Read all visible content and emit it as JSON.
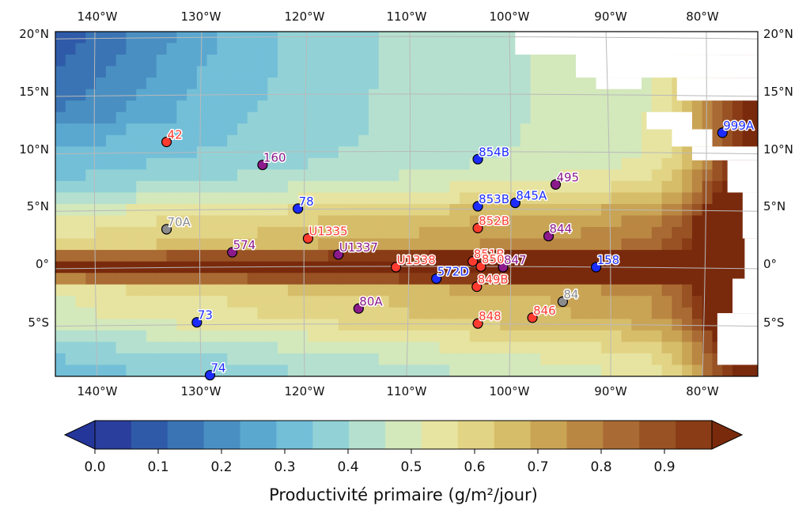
{
  "map": {
    "lon_ticks": [
      "140°W",
      "130°W",
      "120°W",
      "110°W",
      "100°W",
      "90°W",
      "80°W"
    ],
    "lat_ticks": [
      "20°N",
      "15°N",
      "10°N",
      "5°N",
      "0°",
      "5°S"
    ],
    "extent": {
      "lon": [
        -144.5,
        -75
      ],
      "lat": [
        -9.5,
        20.5
      ]
    },
    "land_color": "#ffffff",
    "grid": true
  },
  "colorbar": {
    "title": "Productivité primaire (g/m²/jour)",
    "ticks": [
      "0.0",
      "0.1",
      "0.2",
      "0.3",
      "0.4",
      "0.5",
      "0.6",
      "0.7",
      "0.8",
      "0.9"
    ],
    "colors": [
      "#2a3e9e",
      "#2f5aa8",
      "#3a74b4",
      "#4a8fc2",
      "#5aa8cf",
      "#73bfd8",
      "#92d2d6",
      "#b5e0cf",
      "#d3e8bb",
      "#e6e4a0",
      "#e2d485",
      "#d6bd6a",
      "#c9a455",
      "#ba8743",
      "#a96a33",
      "#985224",
      "#893c16"
    ],
    "under_color": "#24369a",
    "over_color": "#7a2a0c"
  },
  "sites": [
    {
      "label": "42",
      "lon": -133.5,
      "lat": 10.9,
      "color": "#ff3b30"
    },
    {
      "label": "160",
      "lon": -124,
      "lat": 8.9,
      "color": "#8b1a8b"
    },
    {
      "label": "854B",
      "lon": -102.7,
      "lat": 9.4,
      "color": "#1c2cff"
    },
    {
      "label": "999A",
      "lon": -78.5,
      "lat": 11.7,
      "color": "#1c2cff"
    },
    {
      "label": "495",
      "lon": -95,
      "lat": 7.2,
      "color": "#8b1a8b"
    },
    {
      "label": "78",
      "lon": -120.5,
      "lat": 5.1,
      "color": "#1c2cff"
    },
    {
      "label": "853B",
      "lon": -102.7,
      "lat": 5.3,
      "color": "#1c2cff"
    },
    {
      "label": "845A",
      "lon": -99,
      "lat": 5.6,
      "color": "#1c2cff"
    },
    {
      "label": "70A",
      "lon": -133.5,
      "lat": 3.3,
      "color": "#8c8c8c"
    },
    {
      "label": "852B",
      "lon": -102.7,
      "lat": 3.4,
      "color": "#ff3b30"
    },
    {
      "label": "U1335",
      "lon": -119.5,
      "lat": 2.5,
      "color": "#ff3b30"
    },
    {
      "label": "844",
      "lon": -95.7,
      "lat": 2.7,
      "color": "#8b1a8b"
    },
    {
      "label": "574",
      "lon": -127,
      "lat": 1.3,
      "color": "#8b1a8b"
    },
    {
      "label": "U1337",
      "lon": -116.5,
      "lat": 1.1,
      "color": "#8b1a8b"
    },
    {
      "label": "851B",
      "lon": -103.2,
      "lat": 0.5,
      "color": "#ff3b30"
    },
    {
      "label": "U1338",
      "lon": -110.8,
      "lat": 0,
      "color": "#ff3b30"
    },
    {
      "label": "847",
      "lon": -100.2,
      "lat": 0,
      "color": "#8b1a8b"
    },
    {
      "label": "158",
      "lon": -91,
      "lat": 0,
      "color": "#1c2cff"
    },
    {
      "label": "850",
      "lon": -102.4,
      "lat": 0.05,
      "color": "#ff3b30"
    },
    {
      "label": "572D",
      "lon": -106.8,
      "lat": -1,
      "color": "#1c2cff"
    },
    {
      "label": "849B",
      "lon": -102.8,
      "lat": -1.7,
      "color": "#ff3b30"
    },
    {
      "label": "84",
      "lon": -94.3,
      "lat": -3,
      "color": "#8c8c8c"
    },
    {
      "label": "80A",
      "lon": -114.5,
      "lat": -3.6,
      "color": "#8b1a8b"
    },
    {
      "label": "846",
      "lon": -97.3,
      "lat": -4.4,
      "color": "#ff3b30"
    },
    {
      "label": "73",
      "lon": -130.5,
      "lat": -4.8,
      "color": "#1c2cff"
    },
    {
      "label": "848",
      "lon": -102.7,
      "lat": -4.9,
      "color": "#ff3b30"
    },
    {
      "label": "74",
      "lon": -129.2,
      "lat": -9.4,
      "color": "#1c2cff"
    }
  ]
}
